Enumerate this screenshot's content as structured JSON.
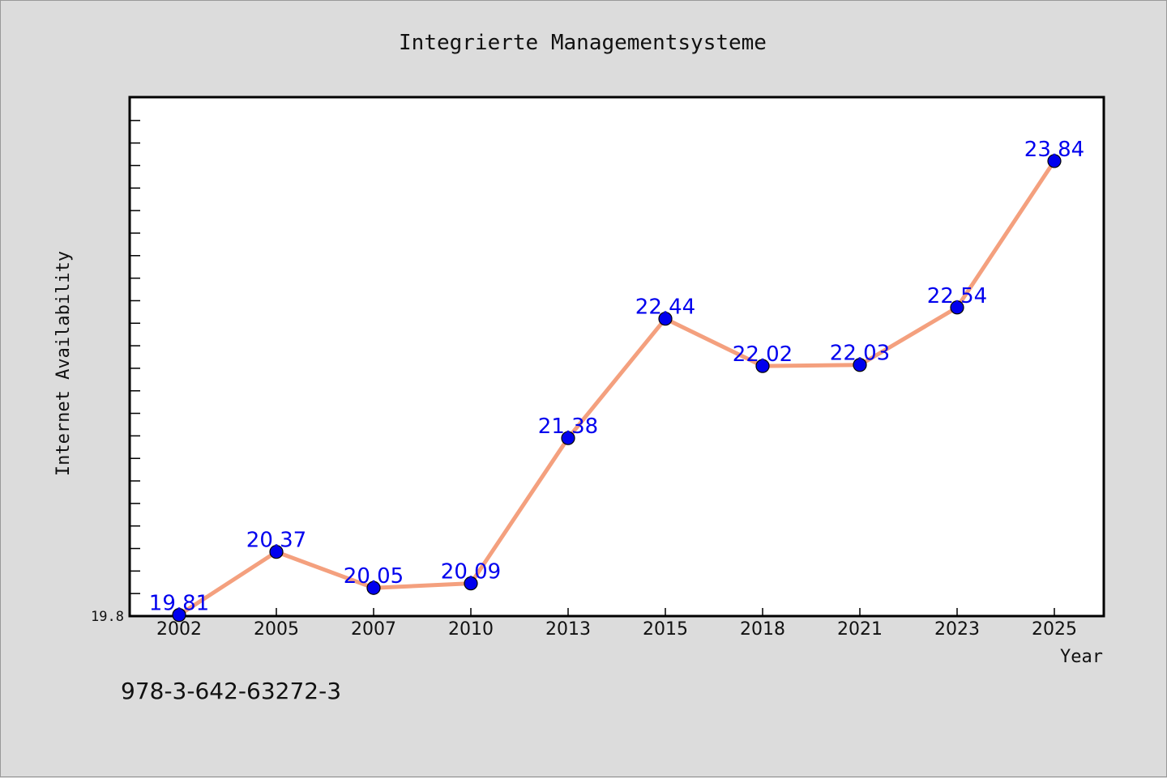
{
  "chart_data": {
    "type": "line",
    "title": "Integrierte Managementsysteme",
    "xlabel": "Year",
    "ylabel": "Internet Availability",
    "categories": [
      "2002",
      "2005",
      "2007",
      "2010",
      "2013",
      "2015",
      "2018",
      "2021",
      "2023",
      "2025"
    ],
    "values": [
      19.81,
      20.37,
      20.05,
      20.09,
      21.38,
      22.44,
      22.02,
      22.03,
      22.54,
      23.84
    ],
    "data_labels": [
      "19.81",
      "20.37",
      "20.05",
      "20.09",
      "21.38",
      "22.44",
      "22.02",
      "22.03",
      "22.54",
      "23.84"
    ],
    "yticks": [
      "19.8"
    ],
    "ylim": [
      19.8,
      24.4
    ],
    "grid": false,
    "colors": {
      "background": "#dcdcdc",
      "plot_background": "#ffffff",
      "line": "#f4a07e",
      "marker": "#0000ee",
      "data_label": "#0000ee"
    }
  },
  "footer_text": "978-3-642-63272-3"
}
